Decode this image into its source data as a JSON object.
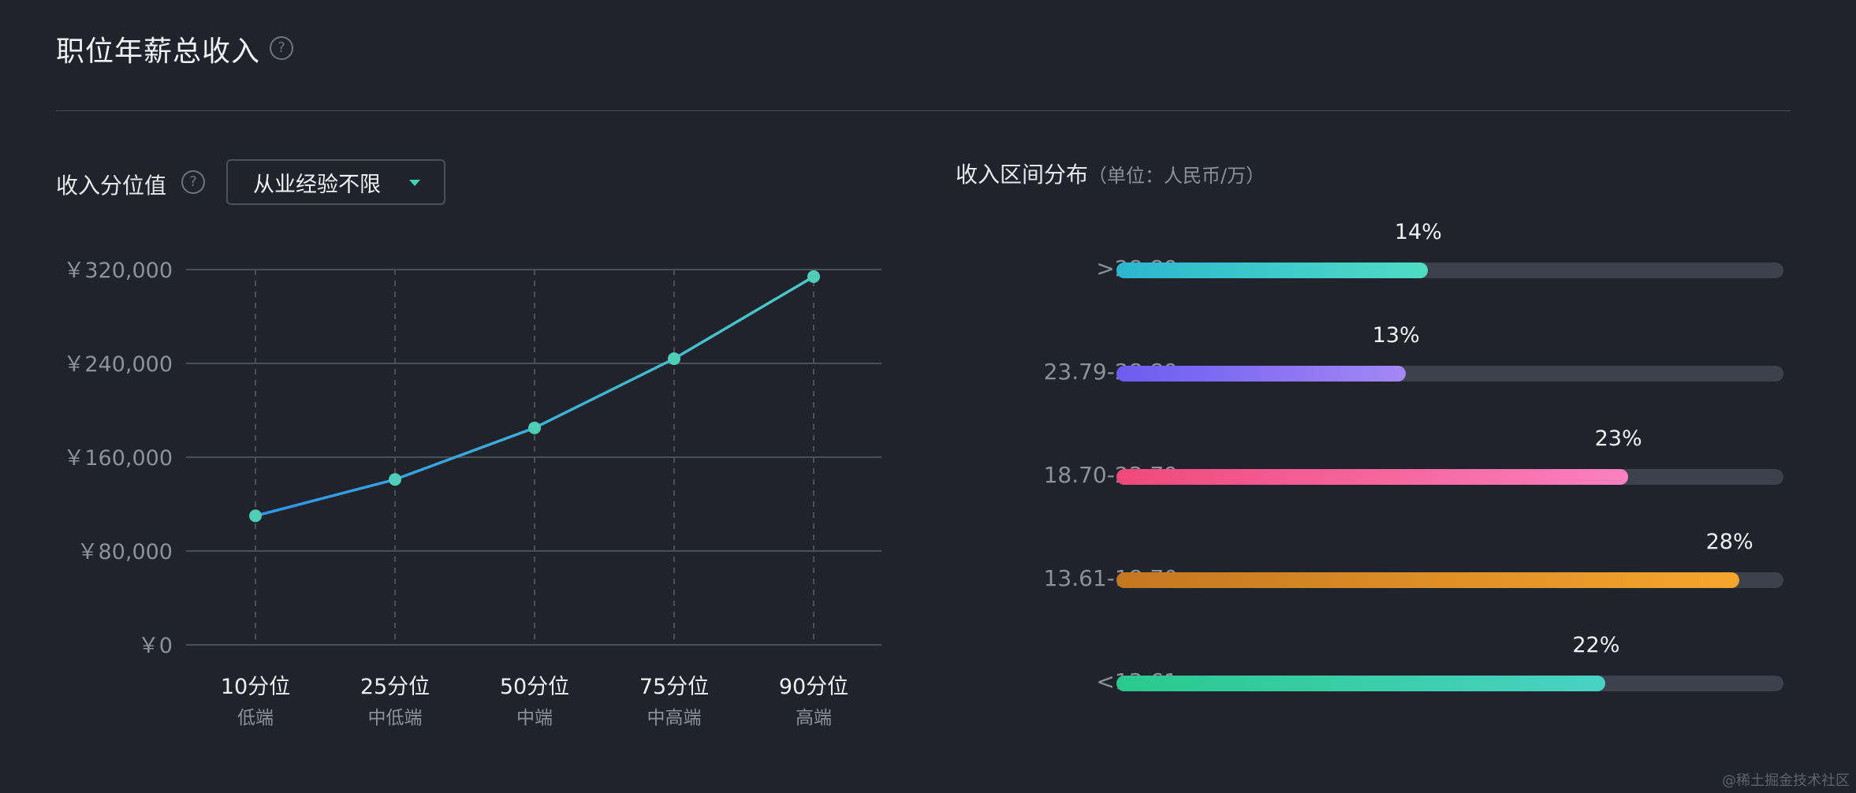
{
  "header": {
    "title": "职位年薪总收入",
    "help_glyph": "?"
  },
  "left_panel": {
    "label": "收入分位值",
    "help_glyph": "?",
    "dropdown_value": "从业经验不限"
  },
  "right_panel": {
    "title": "收入区间分布",
    "unit_note": "（单位：人民币/万）"
  },
  "chart_data": [
    {
      "type": "line",
      "categories": [
        "10分位",
        "25分位",
        "50分位",
        "75分位",
        "90分位"
      ],
      "category_sublabels": [
        "低端",
        "中低端",
        "中端",
        "中高端",
        "高端"
      ],
      "series": [
        {
          "values": [
            110000,
            141000,
            185000,
            244000,
            314000
          ]
        }
      ],
      "y_ticks": [
        0,
        80000,
        160000,
        240000,
        320000
      ],
      "y_tick_labels": [
        "￥0",
        "￥80,000",
        "￥160,000",
        "￥240,000",
        "￥320,000"
      ],
      "ylim": [
        0,
        320000
      ],
      "grid": "horizontal",
      "line_color": "#36a7e0",
      "point_color": "#4fcdb7"
    },
    {
      "type": "bar",
      "orientation": "horizontal",
      "categories": [
        ">28.89",
        "23.79-28.89",
        "18.70-23.79",
        "13.61-18.70",
        "<13.61"
      ],
      "values": [
        14,
        13,
        23,
        28,
        22
      ],
      "value_labels": [
        "14%",
        "13%",
        "23%",
        "28%",
        "22%"
      ],
      "max": 30,
      "colors": [
        [
          "#2bb6cf",
          "#4fdcc4"
        ],
        [
          "#6b5cf0",
          "#a487f5"
        ],
        [
          "#f0497a",
          "#fb80c0"
        ],
        [
          "#c37720",
          "#f6a52c"
        ],
        [
          "#29c98c",
          "#49d2c4"
        ]
      ],
      "track_color": "#3c414b"
    }
  ],
  "watermark": "@稀土掘金技术社区"
}
